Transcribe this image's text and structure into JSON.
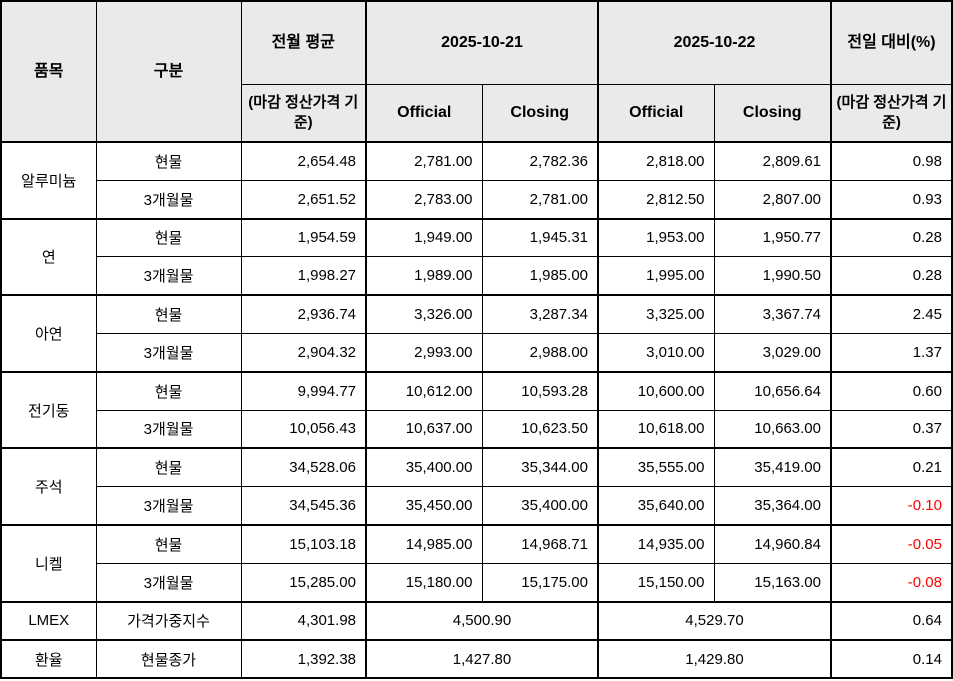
{
  "table": {
    "header": {
      "col_item": "품목",
      "col_category": "구분",
      "col_prev_avg": "전월 평균",
      "col_prev_avg_sub": "(마감 정산가격 기준)",
      "date1": "2025-10-21",
      "date2": "2025-10-22",
      "official": "Official",
      "closing": "Closing",
      "col_change": "전일 대비(%)",
      "col_change_sub": "(마감 정산가격 기준)"
    },
    "groups": [
      {
        "item": "알루미늄",
        "rows": [
          {
            "category": "현물",
            "prev_avg": "2,654.48",
            "d1_official": "2,781.00",
            "d1_closing": "2,782.36",
            "d2_official": "2,818.00",
            "d2_closing": "2,809.61",
            "change": "0.98"
          },
          {
            "category": "3개월물",
            "prev_avg": "2,651.52",
            "d1_official": "2,783.00",
            "d1_closing": "2,781.00",
            "d2_official": "2,812.50",
            "d2_closing": "2,807.00",
            "change": "0.93"
          }
        ]
      },
      {
        "item": "연",
        "rows": [
          {
            "category": "현물",
            "prev_avg": "1,954.59",
            "d1_official": "1,949.00",
            "d1_closing": "1,945.31",
            "d2_official": "1,953.00",
            "d2_closing": "1,950.77",
            "change": "0.28"
          },
          {
            "category": "3개월물",
            "prev_avg": "1,998.27",
            "d1_official": "1,989.00",
            "d1_closing": "1,985.00",
            "d2_official": "1,995.00",
            "d2_closing": "1,990.50",
            "change": "0.28"
          }
        ]
      },
      {
        "item": "아연",
        "rows": [
          {
            "category": "현물",
            "prev_avg": "2,936.74",
            "d1_official": "3,326.00",
            "d1_closing": "3,287.34",
            "d2_official": "3,325.00",
            "d2_closing": "3,367.74",
            "change": "2.45"
          },
          {
            "category": "3개월물",
            "prev_avg": "2,904.32",
            "d1_official": "2,993.00",
            "d1_closing": "2,988.00",
            "d2_official": "3,010.00",
            "d2_closing": "3,029.00",
            "change": "1.37"
          }
        ]
      },
      {
        "item": "전기동",
        "rows": [
          {
            "category": "현물",
            "prev_avg": "9,994.77",
            "d1_official": "10,612.00",
            "d1_closing": "10,593.28",
            "d2_official": "10,600.00",
            "d2_closing": "10,656.64",
            "change": "0.60"
          },
          {
            "category": "3개월물",
            "prev_avg": "10,056.43",
            "d1_official": "10,637.00",
            "d1_closing": "10,623.50",
            "d2_official": "10,618.00",
            "d2_closing": "10,663.00",
            "change": "0.37"
          }
        ]
      },
      {
        "item": "주석",
        "rows": [
          {
            "category": "현물",
            "prev_avg": "34,528.06",
            "d1_official": "35,400.00",
            "d1_closing": "35,344.00",
            "d2_official": "35,555.00",
            "d2_closing": "35,419.00",
            "change": "0.21"
          },
          {
            "category": "3개월물",
            "prev_avg": "34,545.36",
            "d1_official": "35,450.00",
            "d1_closing": "35,400.00",
            "d2_official": "35,640.00",
            "d2_closing": "35,364.00",
            "change": "-0.10"
          }
        ]
      },
      {
        "item": "니켈",
        "rows": [
          {
            "category": "현물",
            "prev_avg": "15,103.18",
            "d1_official": "14,985.00",
            "d1_closing": "14,968.71",
            "d2_official": "14,935.00",
            "d2_closing": "14,960.84",
            "change": "-0.05"
          },
          {
            "category": "3개월물",
            "prev_avg": "15,285.00",
            "d1_official": "15,180.00",
            "d1_closing": "15,175.00",
            "d2_official": "15,150.00",
            "d2_closing": "15,163.00",
            "change": "-0.08"
          }
        ]
      }
    ],
    "summary_rows": [
      {
        "item": "LMEX",
        "category": "가격가중지수",
        "prev_avg": "4,301.98",
        "d1": "4,500.90",
        "d2": "4,529.70",
        "change": "0.64"
      },
      {
        "item": "환율",
        "category": "현물종가",
        "prev_avg": "1,392.38",
        "d1": "1,427.80",
        "d2": "1,429.80",
        "change": "0.14"
      }
    ]
  },
  "colors": {
    "header_bg": "#e9eaec",
    "border": "#000000",
    "text": "#000000",
    "negative_text": "#ff0000"
  }
}
